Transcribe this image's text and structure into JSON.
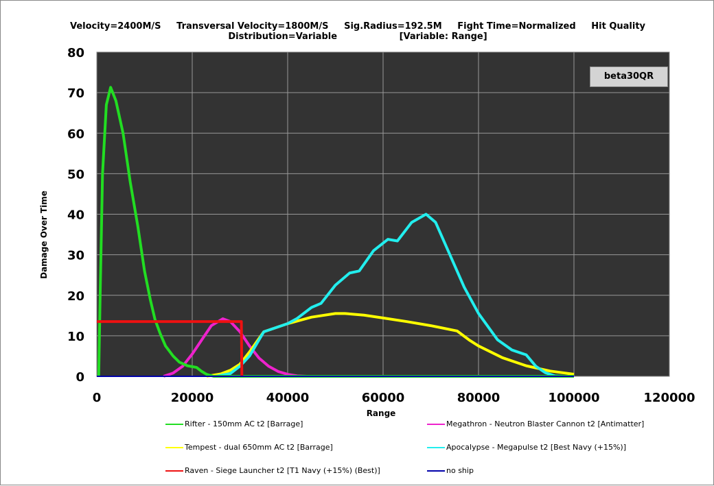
{
  "chart_data": {
    "type": "line",
    "title_line1": "Velocity=2400M/S     Transversal Velocity=1800M/S     Sig.Radius=192.5M     Fight Time=Normalized     Hit Quality",
    "title_line2": "Distribution=Variable                    [Variable: Range]",
    "xlabel": "Range",
    "ylabel": "Damage Over Time",
    "xlim": [
      0,
      120000
    ],
    "ylim": [
      0,
      80
    ],
    "xticks": [
      0,
      20000,
      40000,
      60000,
      80000,
      100000,
      120000
    ],
    "yticks": [
      0,
      10,
      20,
      30,
      40,
      50,
      60,
      70,
      80
    ],
    "grid": true,
    "badge": "beta30QR",
    "plot_bg": "#333333",
    "series": [
      {
        "name": "Rifter - 150mm AC t2 [Barrage]",
        "color": "#22dd22",
        "points": [
          [
            400,
            0
          ],
          [
            700,
            20
          ],
          [
            1200,
            50
          ],
          [
            2000,
            67
          ],
          [
            2900,
            71.3
          ],
          [
            4000,
            68
          ],
          [
            5500,
            60
          ],
          [
            7000,
            48
          ],
          [
            8600,
            37
          ],
          [
            10000,
            26
          ],
          [
            11200,
            19
          ],
          [
            12200,
            14
          ],
          [
            13300,
            10.5
          ],
          [
            14400,
            7.5
          ],
          [
            16000,
            5
          ],
          [
            17300,
            3.5
          ],
          [
            19000,
            2.6
          ],
          [
            20900,
            2.2
          ],
          [
            22000,
            1.2
          ],
          [
            23000,
            0.5
          ],
          [
            24500,
            0
          ],
          [
            100000,
            0
          ]
        ]
      },
      {
        "name": "Megathron - Neutron Blaster Cannon t2 [Antimatter]",
        "color": "#ee22cc",
        "points": [
          [
            14000,
            0
          ],
          [
            16000,
            0.8
          ],
          [
            18000,
            2.5
          ],
          [
            20000,
            5.5
          ],
          [
            22000,
            9
          ],
          [
            24000,
            12.5
          ],
          [
            26400,
            14.2
          ],
          [
            28000,
            13.5
          ],
          [
            30000,
            11
          ],
          [
            32000,
            7.5
          ],
          [
            34000,
            4.5
          ],
          [
            36000,
            2.5
          ],
          [
            38000,
            1.2
          ],
          [
            40000,
            0.5
          ],
          [
            42000,
            0.1
          ],
          [
            44000,
            0
          ]
        ]
      },
      {
        "name": "Tempest - dual 650mm AC t2 [Barrage]",
        "color": "#ffff00",
        "points": [
          [
            23000,
            0
          ],
          [
            26000,
            0.6
          ],
          [
            28000,
            1.5
          ],
          [
            30000,
            3
          ],
          [
            32000,
            6
          ],
          [
            35000,
            11
          ],
          [
            40000,
            13
          ],
          [
            45000,
            14.6
          ],
          [
            50000,
            15.5
          ],
          [
            52000,
            15.5
          ],
          [
            56000,
            15.1
          ],
          [
            60000,
            14.4
          ],
          [
            65000,
            13.5
          ],
          [
            70000,
            12.5
          ],
          [
            75500,
            11.2
          ],
          [
            78000,
            9
          ],
          [
            80000,
            7.5
          ],
          [
            85000,
            4.6
          ],
          [
            90000,
            2.6
          ],
          [
            95000,
            1.3
          ],
          [
            100000,
            0.5
          ]
        ]
      },
      {
        "name": "Apocalypse - Megapulse t2 [Best Navy (+15%)]",
        "color": "#22eeee",
        "points": [
          [
            25000,
            0
          ],
          [
            28000,
            0.7
          ],
          [
            30000,
            2.5
          ],
          [
            32000,
            5
          ],
          [
            35000,
            11
          ],
          [
            40000,
            13
          ],
          [
            42000,
            14.3
          ],
          [
            45000,
            17
          ],
          [
            47000,
            18
          ],
          [
            50000,
            22.5
          ],
          [
            53000,
            25.5
          ],
          [
            55000,
            26
          ],
          [
            58000,
            31
          ],
          [
            61000,
            33.8
          ],
          [
            63000,
            33.4
          ],
          [
            66000,
            38
          ],
          [
            69000,
            40
          ],
          [
            71000,
            38
          ],
          [
            74000,
            30
          ],
          [
            77000,
            22
          ],
          [
            80000,
            15.5
          ],
          [
            84000,
            9
          ],
          [
            87000,
            6.5
          ],
          [
            90000,
            5.3
          ],
          [
            92000,
            2.5
          ],
          [
            94000,
            0.9
          ],
          [
            96000,
            0.1
          ],
          [
            98000,
            0
          ]
        ]
      },
      {
        "name": "Raven - Siege Launcher t2 [T1 Navy (+15%) (Best)]",
        "color": "#ee1111",
        "points": [
          [
            0,
            13.5
          ],
          [
            30300,
            13.5
          ],
          [
            30400,
            0
          ]
        ]
      },
      {
        "name": "no ship",
        "color": "#0000aa",
        "points": [
          [
            0,
            0
          ],
          [
            100000,
            0
          ]
        ]
      }
    ]
  }
}
